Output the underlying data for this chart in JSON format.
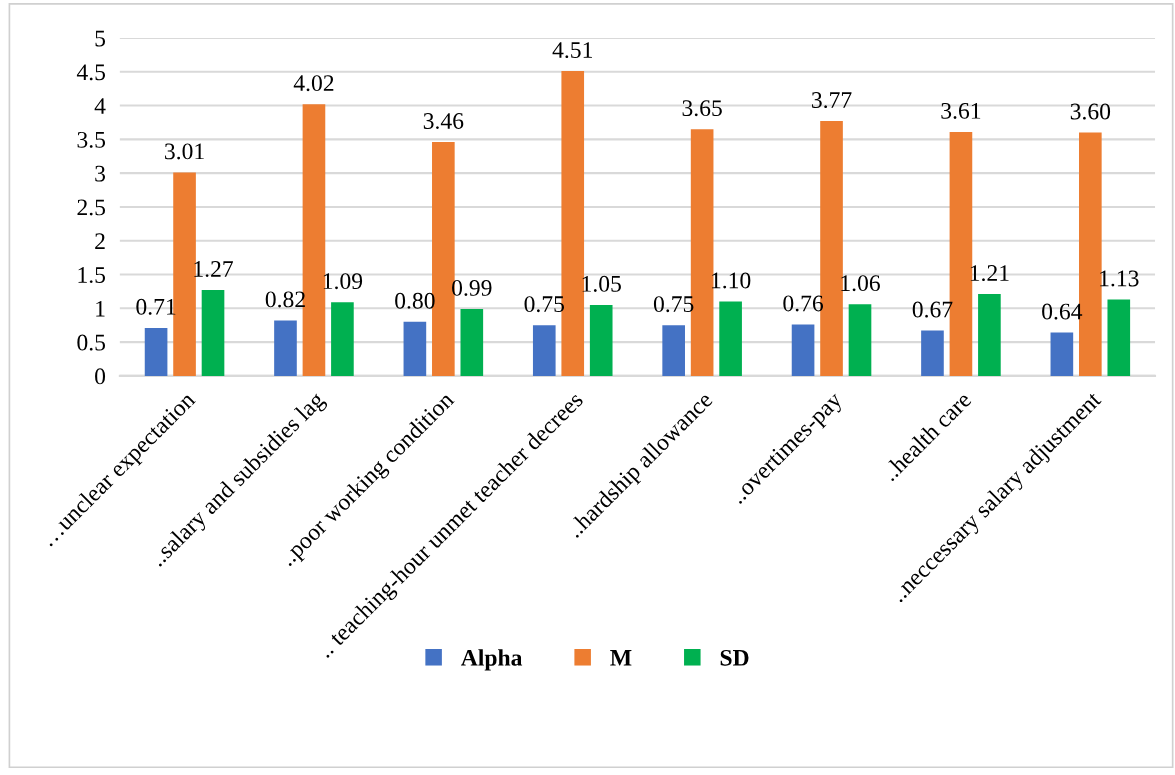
{
  "chart_data": {
    "type": "bar",
    "categories": [
      "…unclear expectation",
      "..salary and subsidies lag",
      "..poor working condition",
      ".. teaching-hour unmet teacher decrees",
      "..hardship allowance",
      "..overtimes-pay",
      "..health care",
      "..neccessary salary adjustment"
    ],
    "series": [
      {
        "name": "Alpha",
        "color": "#4472c4",
        "values": [
          0.71,
          0.82,
          0.8,
          0.75,
          0.75,
          0.76,
          0.67,
          0.64
        ],
        "value_labels": [
          "0.71",
          "0.82",
          "0.80",
          "0.75",
          "0.75",
          "0.76",
          "0.67",
          "0.64"
        ]
      },
      {
        "name": "M",
        "color": "#ed7d31",
        "values": [
          3.01,
          4.02,
          3.46,
          4.51,
          3.65,
          3.77,
          3.61,
          3.6
        ],
        "value_labels": [
          "3.01",
          "4.02",
          "3.46",
          "4.51",
          "3.65",
          "3.77",
          "3.61",
          "3.60"
        ]
      },
      {
        "name": "SD",
        "color": "#00b050",
        "values": [
          1.27,
          1.09,
          0.99,
          1.05,
          1.1,
          1.06,
          1.21,
          1.13
        ],
        "value_labels": [
          "1.27",
          "1.09",
          "0.99",
          "1.05",
          "1.10",
          "1.06",
          "1.21",
          "1.13"
        ]
      }
    ],
    "ylim": [
      0,
      5
    ],
    "yticks": [
      0,
      0.5,
      1,
      1.5,
      2,
      2.5,
      3,
      3.5,
      4,
      4.5,
      5
    ],
    "grid": "y",
    "legend": "bottom"
  }
}
